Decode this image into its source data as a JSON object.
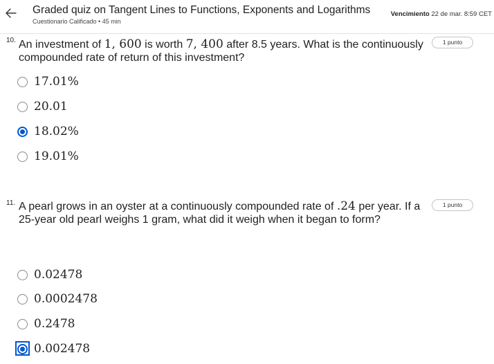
{
  "header": {
    "title": "Graded quiz on Tangent Lines to Functions, Exponents and Logarithms",
    "subtitle": "Cuestionario Calificado • 45 min",
    "due_label": "Vencimiento",
    "due_value": "22 de mar. 8:59 CET",
    "back_icon": "arrow-left-icon"
  },
  "questions": [
    {
      "number": "10.",
      "points": "1 punto",
      "text_parts": [
        "An investment of ",
        "1, 600",
        " is worth ",
        "7, 400",
        " after 8.5 years. What is the continuously compounded rate of return of this investment?"
      ],
      "options": [
        {
          "label": "17.01%",
          "selected": false
        },
        {
          "label": "20.01",
          "selected": false
        },
        {
          "label": "18.02%",
          "selected": true
        },
        {
          "label": "19.01%",
          "selected": false
        }
      ]
    },
    {
      "number": "11.",
      "points": "1 punto",
      "text_parts": [
        "A pearl grows in an oyster at a continuously compounded rate of ",
        ".24",
        " per year. If a 25-year old pearl weighs 1 gram, what did it weigh when it began to form?"
      ],
      "options": [
        {
          "label": "0.02478",
          "selected": false
        },
        {
          "label": "0.0002478",
          "selected": false
        },
        {
          "label": "0.2478",
          "selected": false
        },
        {
          "label": "0.002478",
          "selected": true
        }
      ]
    }
  ],
  "colors": {
    "accent": "#0056d2",
    "text": "#1f1f1f",
    "border": "#c4c4c4"
  }
}
